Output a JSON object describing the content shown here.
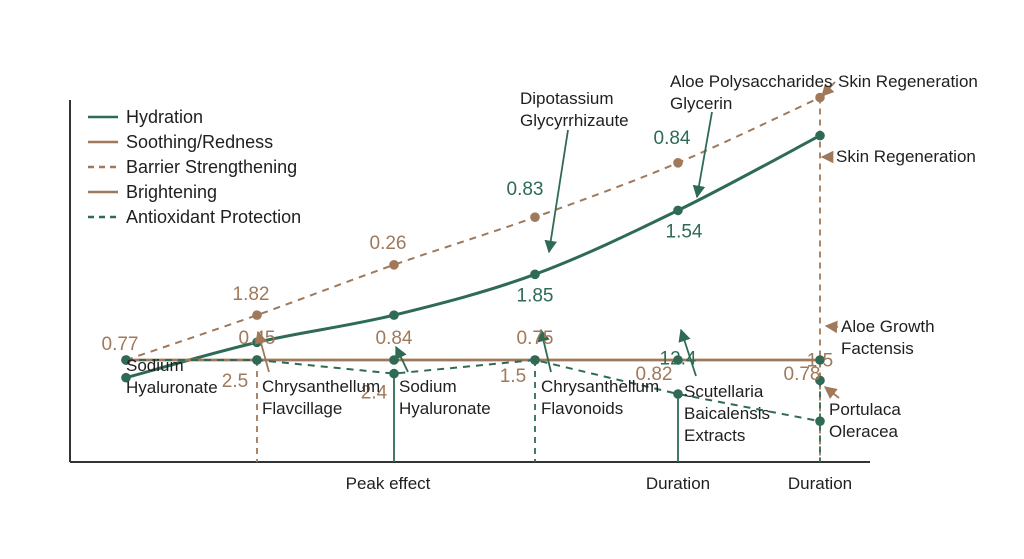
{
  "colors": {
    "green": "#2f6b54",
    "brown": "#a0795a",
    "axis": "#333333",
    "text": "#1f1f1f"
  },
  "chart_data": {
    "type": "line",
    "title": "",
    "xlabel": "",
    "ylabel": "",
    "grid": false,
    "legend_placement": "top-left",
    "x": [
      0,
      1,
      2,
      3,
      4,
      5
    ],
    "x_tick_labels": [
      {
        "x": 2,
        "label": "Peak effect"
      },
      {
        "x": 4,
        "label": "Duration"
      },
      {
        "x": 5,
        "label": "Duration"
      }
    ],
    "series": [
      {
        "name": "Hydration",
        "color": "#2f6b54",
        "dash": false,
        "y": [
          0.62,
          0.88,
          1.08,
          1.38,
          1.85,
          2.4
        ]
      },
      {
        "name": "Soothing/Redness",
        "color": "#a0795a",
        "dash": false,
        "y": [
          0.75,
          0.75,
          0.75,
          0.75,
          0.75,
          0.75
        ]
      },
      {
        "name": "Barrier Strengthening",
        "color": "#a0795a",
        "dash": true,
        "y": [
          0.75,
          1.08,
          1.45,
          1.8,
          2.2,
          2.68
        ]
      },
      {
        "name": "Brightening",
        "color": "#a0795a",
        "dash": false,
        "y": [
          0.75,
          0.75,
          0.75,
          0.75,
          0.75,
          0.75
        ]
      },
      {
        "name": "Antioxidant Protection",
        "color": "#2f6b54",
        "dash": true,
        "y": [
          0.75,
          0.75,
          0.65,
          0.75,
          0.5,
          0.3
        ]
      }
    ],
    "data_labels": [
      {
        "text": "0.77",
        "x": 0,
        "y": 0.75,
        "color": "brown"
      },
      {
        "text": "1.82",
        "x": 1,
        "y": 1.08,
        "color": "brown"
      },
      {
        "text": "0.45",
        "x": 1,
        "y": 0.75,
        "color": "brown"
      },
      {
        "text": "2.5",
        "x": 1,
        "y": 0.75,
        "color": "brown"
      },
      {
        "text": "0.26",
        "x": 2,
        "y": 1.45,
        "color": "brown"
      },
      {
        "text": "0.84",
        "x": 2,
        "y": 0.75,
        "color": "brown"
      },
      {
        "text": "2.4",
        "x": 2,
        "y": 0.65,
        "color": "brown"
      },
      {
        "text": "0.83",
        "x": 3,
        "y": 1.8,
        "color": "green"
      },
      {
        "text": "1.85",
        "x": 3,
        "y": 1.38,
        "color": "green"
      },
      {
        "text": "0.75",
        "x": 3,
        "y": 0.75,
        "color": "brown"
      },
      {
        "text": "1.5",
        "x": 3,
        "y": 0.75,
        "color": "brown"
      },
      {
        "text": "0.84",
        "x": 4,
        "y": 2.2,
        "color": "green"
      },
      {
        "text": "1.54",
        "x": 4,
        "y": 1.85,
        "color": "green"
      },
      {
        "text": "0.82",
        "x": 4,
        "y": 0.75,
        "color": "brown"
      },
      {
        "text": "12.4",
        "x": 4,
        "y": 0.6,
        "color": "green"
      },
      {
        "text": "0.78",
        "x": 5,
        "y": 0.75,
        "color": "brown"
      },
      {
        "text": "1.5",
        "x": 5,
        "y": 0.6,
        "color": "brown"
      }
    ],
    "annotations": [
      "Sodium Hyaluronate",
      "Chrysanthellum Flavcillage",
      "Sodium Hyaluronate",
      "Dipotassium Glycyrrhizaute",
      "Chrysanthellum Flavonoids",
      "Aloe Polysaccharides Glycerin",
      "Scutellaria Baicalensis Extracts",
      "Skin Regeneration",
      "Skin Regeneration",
      "Aloe Growth Factensis",
      "Portulaca Oleracea"
    ]
  }
}
